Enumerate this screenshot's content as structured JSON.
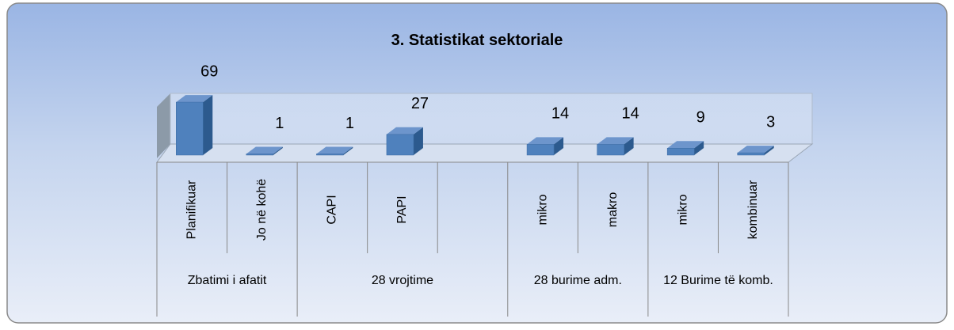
{
  "chart_data": {
    "type": "bar3d",
    "title": "3. Statistikat sektoriale",
    "color": "#4f81bd",
    "groups": [
      {
        "name": "Zbatimi i afatit",
        "categories": [
          "Planifikuar",
          "Jo në kohë"
        ],
        "values": [
          69,
          1
        ]
      },
      {
        "name": "28 vrojtime",
        "categories": [
          "CAPI",
          "PAPI",
          null
        ],
        "values": [
          1,
          27,
          null
        ]
      },
      {
        "name": "28 burime adm.",
        "categories": [
          "mikro",
          "makro"
        ],
        "values": [
          14,
          14
        ]
      },
      {
        "name": "12 Burime të komb.",
        "categories": [
          "mikro",
          "kombinuar"
        ],
        "values": [
          9,
          3
        ]
      }
    ]
  }
}
